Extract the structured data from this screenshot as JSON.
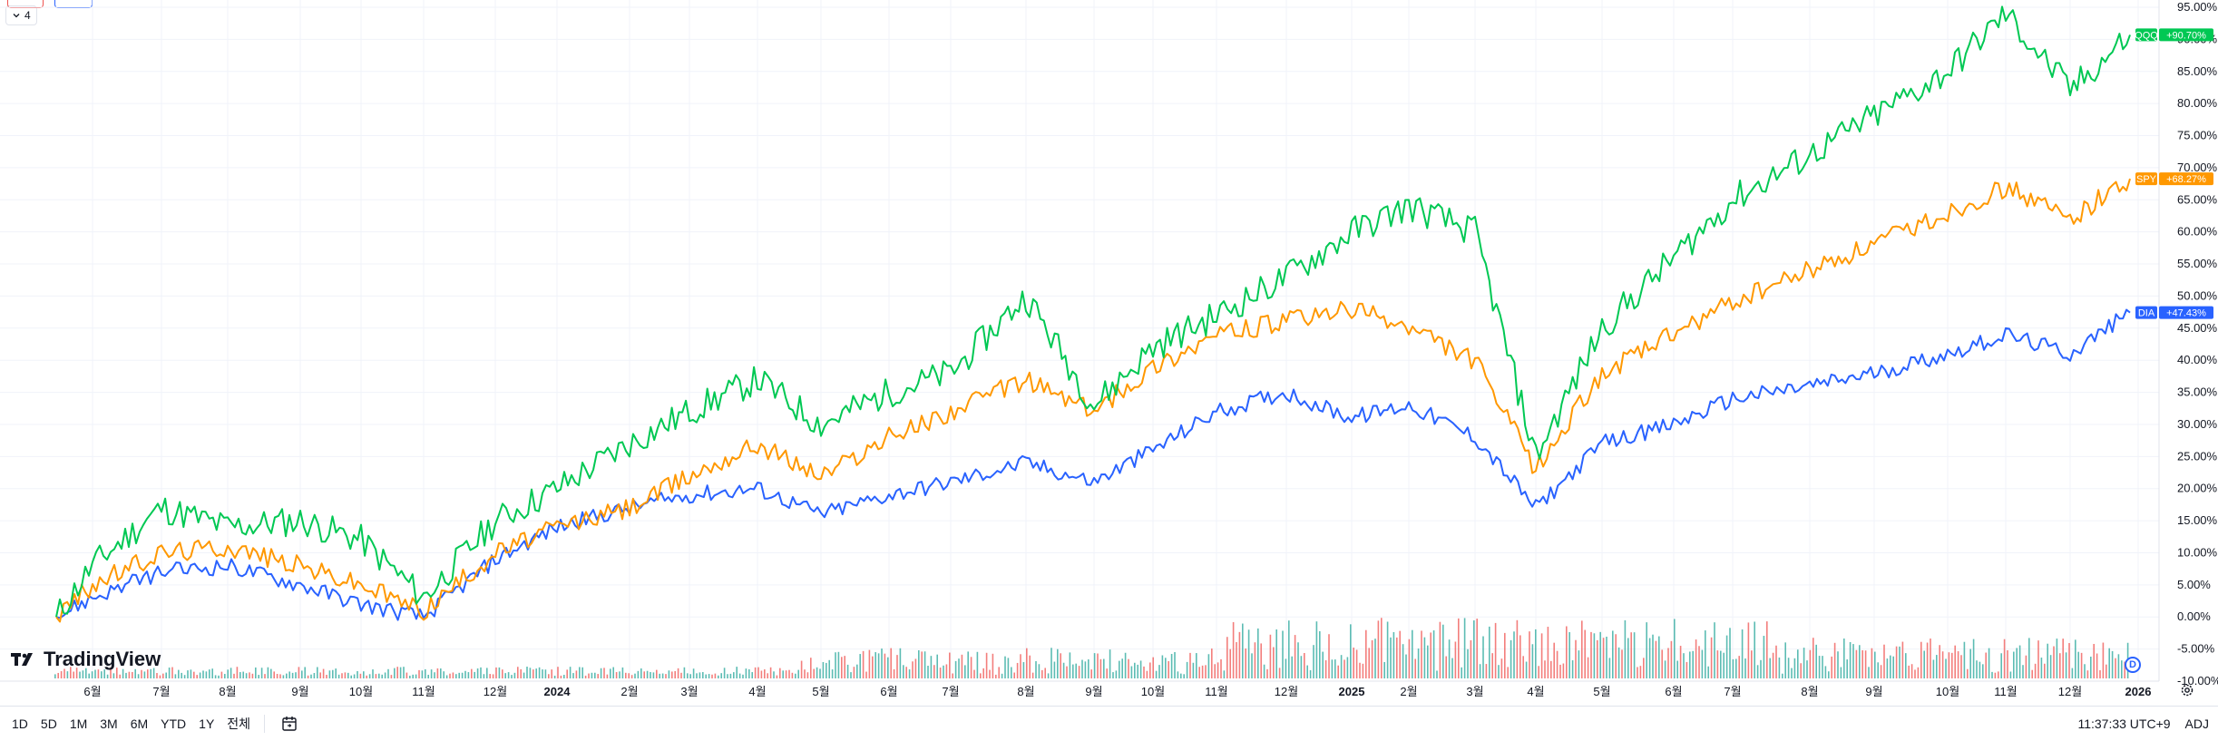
{
  "legend": {
    "collapsed_count": "4"
  },
  "watermark": {
    "text": "TradingView"
  },
  "toolbar": {
    "ranges": [
      "1D",
      "5D",
      "1M",
      "3M",
      "6M",
      "YTD",
      "1Y",
      "전체"
    ],
    "time": "11:37:33 UTC+9",
    "adj_label": "ADJ"
  },
  "d_badge": "D",
  "colors": {
    "QQQ": "#00c853",
    "SPY": "#ff9800",
    "DIA": "#2962ff",
    "volume_up": "#26a69a",
    "volume_down": "#ef5350",
    "grid": "#f0f3fa"
  },
  "chart_data": {
    "type": "line",
    "y_unit": "percent change",
    "ylim": [
      -10,
      95
    ],
    "y_ticks": [
      "95.00%",
      "90.00%",
      "85.00%",
      "80.00%",
      "75.00%",
      "70.00%",
      "65.00%",
      "60.00%",
      "55.00%",
      "50.00%",
      "45.00%",
      "40.00%",
      "35.00%",
      "30.00%",
      "25.00%",
      "20.00%",
      "15.00%",
      "10.00%",
      "5.00%",
      "0.00%",
      "-5.00%",
      "-10.00%"
    ],
    "x_ticks": [
      "6월",
      "7월",
      "8월",
      "9월",
      "10월",
      "11월",
      "12월",
      "2024",
      "2월",
      "3월",
      "4월",
      "5월",
      "6월",
      "7월",
      "8월",
      "9월",
      "10월",
      "11월",
      "12월",
      "2025",
      "2월",
      "3월",
      "4월",
      "5월",
      "6월",
      "7월",
      "8월",
      "9월",
      "10월",
      "11월",
      "12월",
      "2026"
    ],
    "grid": true,
    "series": [
      {
        "name": "QQQ",
        "last_label": "+90.70%",
        "x": [
          "5월",
          "6월",
          "7월",
          "8월",
          "9월",
          "10월",
          "11월",
          "12월",
          "2024",
          "2월",
          "3월",
          "4월",
          "5월",
          "6월",
          "7월",
          "8월",
          "9월",
          "10월",
          "11월",
          "12월",
          "2025",
          "2월",
          "3월",
          "4월",
          "5월",
          "6월",
          "7월",
          "8월",
          "9월",
          "10월",
          "11월",
          "12월",
          "2026"
        ],
        "values": [
          0,
          8,
          17,
          14,
          15,
          12,
          3,
          15,
          20,
          27,
          32,
          37,
          30,
          35,
          38,
          50,
          33,
          42,
          47,
          53,
          60,
          64,
          60,
          25,
          45,
          56,
          65,
          72,
          78,
          85,
          94,
          82,
          90.7
        ]
      },
      {
        "name": "SPY",
        "last_label": "+68.27%",
        "x": [
          "5월",
          "6월",
          "7월",
          "8월",
          "9월",
          "10월",
          "11월",
          "12월",
          "2024",
          "2월",
          "3월",
          "4월",
          "5월",
          "6월",
          "7월",
          "8월",
          "9월",
          "10월",
          "11월",
          "12월",
          "2025",
          "2월",
          "3월",
          "4월",
          "5월",
          "6월",
          "7월",
          "8월",
          "9월",
          "10월",
          "11월",
          "12월",
          "2026"
        ],
        "values": [
          0,
          5,
          10,
          11,
          8,
          5,
          1,
          10,
          14,
          17,
          22,
          27,
          22,
          28,
          32,
          37,
          32,
          39,
          44,
          46,
          48,
          45,
          40,
          23,
          38,
          44,
          49,
          54,
          58,
          63,
          67,
          62,
          68.27
        ]
      },
      {
        "name": "DIA",
        "last_label": "+47.43%",
        "x": [
          "5월",
          "6월",
          "7월",
          "8월",
          "9월",
          "10월",
          "11월",
          "12월",
          "2024",
          "2월",
          "3월",
          "4월",
          "5월",
          "6월",
          "7월",
          "8월",
          "9월",
          "10월",
          "11월",
          "12월",
          "2025",
          "2월",
          "3월",
          "4월",
          "5월",
          "6월",
          "7월",
          "8월",
          "9월",
          "10월",
          "11월",
          "12월",
          "2026"
        ],
        "values": [
          0,
          3,
          7,
          8,
          5,
          2,
          0,
          9,
          14,
          17,
          19,
          20,
          16,
          19,
          21,
          24,
          21,
          26,
          32,
          35,
          31,
          33,
          28,
          17,
          27,
          30,
          34,
          36,
          38,
          41,
          44,
          41,
          47.43
        ]
      }
    ],
    "volume": {
      "colors_by": "up/down",
      "scale_max": 100
    }
  }
}
